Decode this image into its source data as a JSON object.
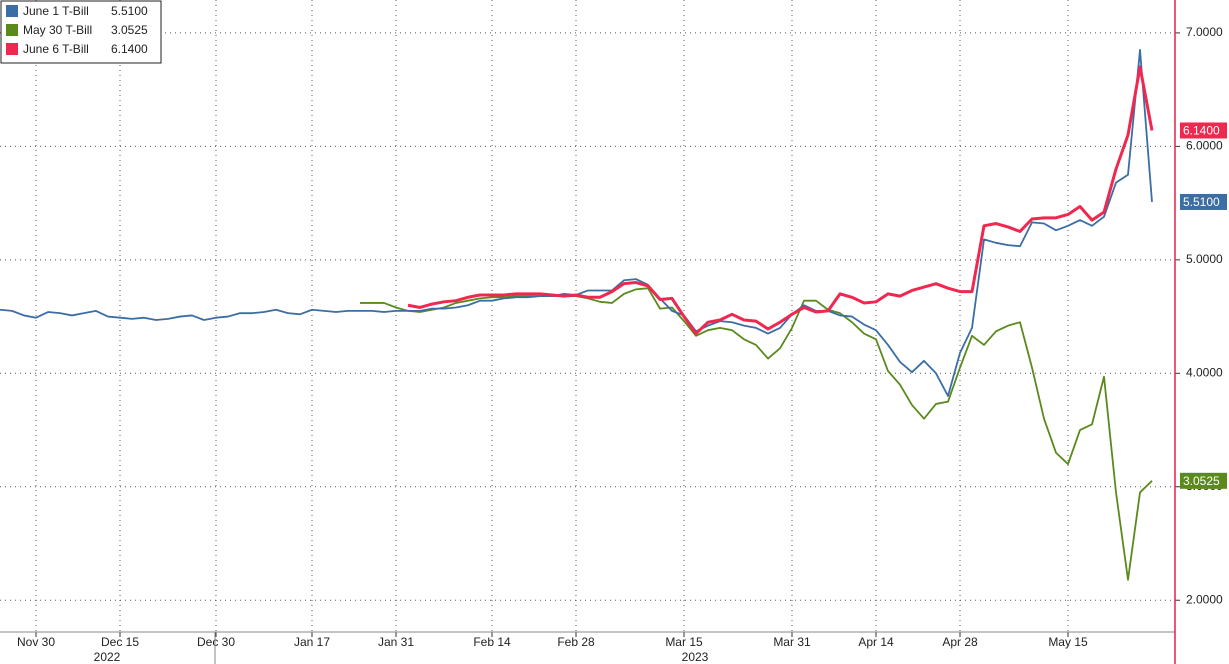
{
  "chart_data": {
    "type": "line",
    "categories": [
      null,
      null,
      null,
      "Nov 30",
      null,
      null,
      null,
      null,
      null,
      null,
      "Dec 15",
      null,
      null,
      null,
      null,
      null,
      null,
      null,
      "Dec 30",
      null,
      null,
      null,
      null,
      null,
      null,
      null,
      "Jan 17",
      null,
      null,
      null,
      null,
      null,
      null,
      "Jan 31",
      null,
      null,
      null,
      null,
      null,
      null,
      null,
      "Feb 14",
      null,
      null,
      null,
      null,
      null,
      null,
      "Feb 28",
      null,
      null,
      null,
      null,
      null,
      null,
      null,
      null,
      "Mar 15",
      null,
      null,
      null,
      null,
      null,
      null,
      null,
      null,
      "Mar 31",
      null,
      null,
      null,
      null,
      null,
      null,
      "Apr 14",
      null,
      null,
      null,
      null,
      null,
      null,
      "Apr 28",
      null,
      null,
      null,
      null,
      null,
      null,
      null,
      null,
      "May 15",
      null,
      null,
      null,
      null,
      null,
      null,
      null
    ],
    "x_group_labels": [
      "2022",
      "2023"
    ],
    "ylim": [
      1.72,
      7.29
    ],
    "yticks": [
      {
        "value": 2,
        "label": "2.0000"
      },
      {
        "value": 3,
        "label": "3.0000"
      },
      {
        "value": 4,
        "label": "4.0000"
      },
      {
        "value": 5,
        "label": "5.0000"
      },
      {
        "value": 6,
        "label": "6.0000"
      },
      {
        "value": 7,
        "label": "7.0000"
      }
    ],
    "grid": true,
    "legend": "top-left",
    "series": [
      {
        "name": "June 1 T-Bill",
        "color": "#3a6ea5",
        "values": [
          4.56,
          4.55,
          4.51,
          4.49,
          4.54,
          4.53,
          4.51,
          4.53,
          4.55,
          4.5,
          4.49,
          4.48,
          4.49,
          4.47,
          4.48,
          4.5,
          4.51,
          4.47,
          4.49,
          4.5,
          4.53,
          4.53,
          4.54,
          4.56,
          4.53,
          4.52,
          4.56,
          4.55,
          4.54,
          4.55,
          4.55,
          4.55,
          4.54,
          4.55,
          4.55,
          4.55,
          4.57,
          4.57,
          4.58,
          4.6,
          4.64,
          4.64,
          4.66,
          4.67,
          4.67,
          4.68,
          4.68,
          4.7,
          4.69,
          4.73,
          4.73,
          4.73,
          4.82,
          4.83,
          4.78,
          4.66,
          4.55,
          4.51,
          4.37,
          4.42,
          4.46,
          4.45,
          4.42,
          4.4,
          4.35,
          4.4,
          4.52,
          4.6,
          4.55,
          4.55,
          4.51,
          4.5,
          4.43,
          4.38,
          4.25,
          4.1,
          4.01,
          4.11,
          4.0,
          3.8,
          4.18,
          4.4,
          5.18,
          5.15,
          5.13,
          5.12,
          5.33,
          5.32,
          5.26,
          5.3,
          5.35,
          5.3,
          5.38,
          5.68,
          5.75,
          6.85,
          5.51
        ],
        "value_labels": [
          null,
          null,
          null,
          null,
          null,
          null,
          null,
          null,
          null,
          null,
          null,
          null,
          null,
          null,
          null,
          null,
          null,
          null,
          null,
          null,
          null,
          null,
          null,
          null,
          null,
          null,
          null,
          null,
          null,
          null,
          null,
          null,
          null,
          null,
          null,
          null,
          null,
          null,
          null,
          null,
          null,
          null,
          null,
          null,
          null,
          null,
          null,
          null,
          null,
          null,
          null,
          null,
          null,
          null,
          null,
          null,
          null,
          null,
          null,
          null,
          null,
          null,
          null,
          null,
          null,
          null,
          null,
          null,
          null,
          null,
          null,
          null,
          null,
          null,
          null,
          null,
          null,
          null,
          null,
          null,
          null,
          null,
          null,
          null,
          null,
          null,
          null,
          null,
          null,
          null,
          null,
          null,
          null,
          null,
          null,
          null,
          "5.5100"
        ]
      },
      {
        "name": "May 30 T-Bill",
        "color": "#5a8a1c",
        "values": [
          null,
          null,
          null,
          null,
          null,
          null,
          null,
          null,
          null,
          null,
          null,
          null,
          null,
          null,
          null,
          null,
          null,
          null,
          null,
          null,
          null,
          null,
          null,
          null,
          null,
          null,
          null,
          null,
          null,
          null,
          4.62,
          4.62,
          4.62,
          4.58,
          4.55,
          4.54,
          4.56,
          4.58,
          4.62,
          4.64,
          4.66,
          4.67,
          4.67,
          4.68,
          4.68,
          4.68,
          4.68,
          4.68,
          4.68,
          4.66,
          4.63,
          4.62,
          4.7,
          4.74,
          4.75,
          4.57,
          4.58,
          4.46,
          4.33,
          4.38,
          4.4,
          4.38,
          4.3,
          4.25,
          4.13,
          4.22,
          4.4,
          4.64,
          4.64,
          4.56,
          4.53,
          4.45,
          4.35,
          4.3,
          4.02,
          3.9,
          3.72,
          3.6,
          3.73,
          3.75,
          4.05,
          4.33,
          4.25,
          4.37,
          4.42,
          4.45,
          4.05,
          3.6,
          3.3,
          3.2,
          3.5,
          3.55,
          3.97,
          2.95,
          2.18,
          2.95,
          3.0525
        ],
        "value_labels": [
          null,
          null,
          null,
          null,
          null,
          null,
          null,
          null,
          null,
          null,
          null,
          null,
          null,
          null,
          null,
          null,
          null,
          null,
          null,
          null,
          null,
          null,
          null,
          null,
          null,
          null,
          null,
          null,
          null,
          null,
          null,
          null,
          null,
          null,
          null,
          null,
          null,
          null,
          null,
          null,
          null,
          null,
          null,
          null,
          null,
          null,
          null,
          null,
          null,
          null,
          null,
          null,
          null,
          null,
          null,
          null,
          null,
          null,
          null,
          null,
          null,
          null,
          null,
          null,
          null,
          null,
          null,
          null,
          null,
          null,
          null,
          null,
          null,
          null,
          null,
          null,
          null,
          null,
          null,
          null,
          null,
          null,
          null,
          null,
          null,
          null,
          null,
          null,
          null,
          null,
          null,
          null,
          null,
          null,
          null,
          null,
          "3.0525"
        ]
      },
      {
        "name": "June 6 T-Bill",
        "color": "#f0284f",
        "values": [
          null,
          null,
          null,
          null,
          null,
          null,
          null,
          null,
          null,
          null,
          null,
          null,
          null,
          null,
          null,
          null,
          null,
          null,
          null,
          null,
          null,
          null,
          null,
          null,
          null,
          null,
          null,
          null,
          null,
          null,
          null,
          null,
          null,
          null,
          4.6,
          4.58,
          4.61,
          4.63,
          4.64,
          4.67,
          4.69,
          4.69,
          4.69,
          4.7,
          4.7,
          4.7,
          4.69,
          4.68,
          4.69,
          4.67,
          4.67,
          4.72,
          4.79,
          4.8,
          4.77,
          4.65,
          4.66,
          4.5,
          4.35,
          4.45,
          4.47,
          4.52,
          4.47,
          4.46,
          4.39,
          4.45,
          4.52,
          4.58,
          4.54,
          4.55,
          4.7,
          4.67,
          4.62,
          4.63,
          4.7,
          4.68,
          4.73,
          4.76,
          4.79,
          4.75,
          4.72,
          4.72,
          5.3,
          5.32,
          5.29,
          5.25,
          5.36,
          5.37,
          5.37,
          5.4,
          5.47,
          5.35,
          5.42,
          5.8,
          6.1,
          6.7,
          6.14
        ],
        "value_labels": [
          null,
          null,
          null,
          null,
          null,
          null,
          null,
          null,
          null,
          null,
          null,
          null,
          null,
          null,
          null,
          null,
          null,
          null,
          null,
          null,
          null,
          null,
          null,
          null,
          null,
          null,
          null,
          null,
          null,
          null,
          null,
          null,
          null,
          null,
          null,
          null,
          null,
          null,
          null,
          null,
          null,
          null,
          null,
          null,
          null,
          null,
          null,
          null,
          null,
          null,
          null,
          null,
          null,
          null,
          null,
          null,
          null,
          null,
          null,
          null,
          null,
          null,
          null,
          null,
          null,
          null,
          null,
          null,
          null,
          null,
          null,
          null,
          null,
          null,
          null,
          null,
          null,
          null,
          null,
          null,
          null,
          null,
          null,
          null,
          null,
          null,
          null,
          null,
          null,
          null,
          null,
          null,
          null,
          null,
          null,
          null,
          "6.1400"
        ]
      }
    ]
  }
}
